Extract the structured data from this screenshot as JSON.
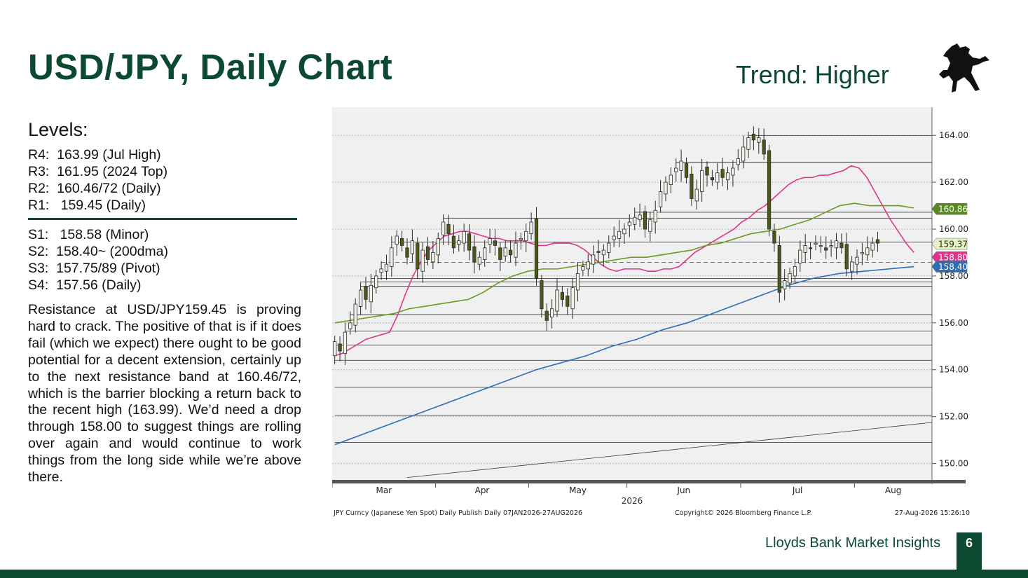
{
  "slide": {
    "title": "USD/JPY, Daily Chart",
    "trend": "Trend: Higher",
    "levels_heading": "Levels:",
    "resistance": [
      "R4:  163.99 (Jul High)",
      "R3:  161.95 (2024 Top)",
      "R2:  160.46/72 (Daily)",
      "R1:   159.45 (Daily)"
    ],
    "support": [
      "S1:   158.58 (Minor)",
      "S2:  158.40~ (200dma)",
      "S3:  157.75/89 (Pivot)",
      "S4:  157.56 (Daily)"
    ],
    "commentary": "Resistance at USD/JPY159.45 is proving hard to crack.  The positive of that is if it does fail (which we expect) there ought to be good potential for a decent extension, certainly up to the next resistance band at 160.46/72, which is the barrier blocking a return back to the recent high (163.99).  We’d need a drop through 158.00 to suggest things are rolling over again and would continue to work things from the long side while we’re above there.",
    "footer_brand": "Lloyds Bank Market Insights",
    "page_number": "6",
    "brand_color": "#0b4a30"
  },
  "chart_data": {
    "type": "candlestick",
    "x_axis": {
      "months": [
        "Mar",
        "Apr",
        "May",
        "Jun",
        "Jul",
        "Aug"
      ],
      "month_start_day": [
        0,
        20,
        38,
        57,
        79,
        101
      ],
      "year_label": "2026",
      "total_days": 116
    },
    "y_axis": {
      "ticks": [
        "164.00",
        "162.00",
        "160.00",
        "158.00",
        "156.00",
        "154.00",
        "152.00",
        "150.00"
      ],
      "ylim": [
        149.3,
        165.2
      ],
      "grid": true,
      "position": "right"
    },
    "closes": [
      155.2,
      154.8,
      155.6,
      156.0,
      156.8,
      157.4,
      157.0,
      157.6,
      158.0,
      158.3,
      158.5,
      159.2,
      159.7,
      159.3,
      158.8,
      159.5,
      158.3,
      159.1,
      158.7,
      159.0,
      159.6,
      160.3,
      159.8,
      159.2,
      159.5,
      159.9,
      159.1,
      158.6,
      158.8,
      159.2,
      159.6,
      159.3,
      158.7,
      159.2,
      158.9,
      159.4,
      159.6,
      159.9,
      160.3,
      157.9,
      156.6,
      156.1,
      156.6,
      157.4,
      157.0,
      156.7,
      157.5,
      158.1,
      158.4,
      158.6,
      158.9,
      159.0,
      159.1,
      159.4,
      159.7,
      159.9,
      160.0,
      160.3,
      160.5,
      160.6,
      160.0,
      160.4,
      160.8,
      161.6,
      162.0,
      162.3,
      162.6,
      162.9,
      162.2,
      161.3,
      161.7,
      162.5,
      162.3,
      162.1,
      162.4,
      162.2,
      162.4,
      162.6,
      163.0,
      163.5,
      163.9,
      163.8,
      163.9,
      163.2,
      160.0,
      159.4,
      157.3,
      157.8,
      158.1,
      158.4,
      159.1,
      159.3,
      159.2,
      159.4,
      159.3,
      159.1,
      159.3,
      159.5,
      159.2,
      158.3,
      158.6,
      158.8,
      159.0,
      159.2,
      159.4,
      159.4
    ],
    "series": [
      {
        "name": "158.80",
        "color": "#e0348a",
        "values": [
          154.6,
          154.7,
          154.9,
          155.1,
          155.3,
          155.4,
          155.5,
          155.6,
          156.3,
          157.2,
          158.0,
          158.6,
          159.1,
          159.4,
          159.7,
          159.8,
          159.9,
          159.9,
          159.8,
          159.7,
          159.6,
          159.6,
          159.5,
          159.5,
          159.5,
          159.4,
          159.3,
          159.3,
          159.4,
          159.4,
          159.4,
          159.3,
          159.1,
          158.8,
          158.5,
          158.3,
          158.2,
          158.3,
          158.3,
          158.3,
          158.2,
          158.2,
          158.3,
          158.3,
          158.4,
          158.7,
          159.0,
          159.2,
          159.4,
          159.6,
          159.8,
          160.0,
          160.3,
          160.5,
          160.8,
          161.0,
          161.3,
          161.6,
          161.9,
          162.1,
          162.2,
          162.2,
          162.3,
          162.3,
          162.4,
          162.5,
          162.7,
          162.6,
          162.2,
          161.6,
          161.0,
          160.4,
          159.9,
          159.4,
          159.0
        ]
      },
      {
        "name": "160.86",
        "color": "#6b9a1e",
        "values": [
          156.0,
          156.1,
          156.2,
          156.3,
          156.4,
          156.6,
          156.7,
          156.8,
          156.9,
          157.0,
          157.3,
          157.7,
          158.0,
          158.2,
          158.3,
          158.3,
          158.4,
          158.5,
          158.6,
          158.7,
          158.8,
          158.8,
          158.9,
          159.0,
          159.1,
          159.3,
          159.4,
          159.6,
          159.8,
          159.9,
          160.0,
          160.2,
          160.4,
          160.7,
          161.0,
          161.1,
          161.0,
          161.0,
          161.0,
          160.9
        ]
      },
      {
        "name": "158.40",
        "color": "#2e6db5",
        "values": [
          150.8,
          151.2,
          151.6,
          152.0,
          152.4,
          152.8,
          153.2,
          153.6,
          154.0,
          154.3,
          154.6,
          155.0,
          155.3,
          155.7,
          156.0,
          156.4,
          156.8,
          157.2,
          157.6,
          157.9,
          158.1,
          158.2,
          158.3,
          158.4
        ]
      }
    ],
    "labels": {
      "ma_labels": [
        "160.86",
        "159.37",
        "158.80",
        "158.40"
      ],
      "footer_left": "JPY Curncy (Japanese Yen Spot) Daily Publish Daily 07JAN2026-27AUG2026",
      "footer_mid": "Copyright© 2026 Bloomberg Finance L.P.",
      "footer_right": "27-Aug-2026 15:26:10"
    },
    "horizontal_levels": [
      163.99,
      162.85,
      160.72,
      160.46,
      159.45,
      158.58,
      157.89,
      157.75,
      157.56,
      156.35,
      155.65,
      155.05,
      154.4,
      153.25,
      152.05,
      150.9
    ],
    "trendline": [
      [
        14.5,
        149.4
      ],
      [
        116,
        151.75
      ]
    ]
  }
}
